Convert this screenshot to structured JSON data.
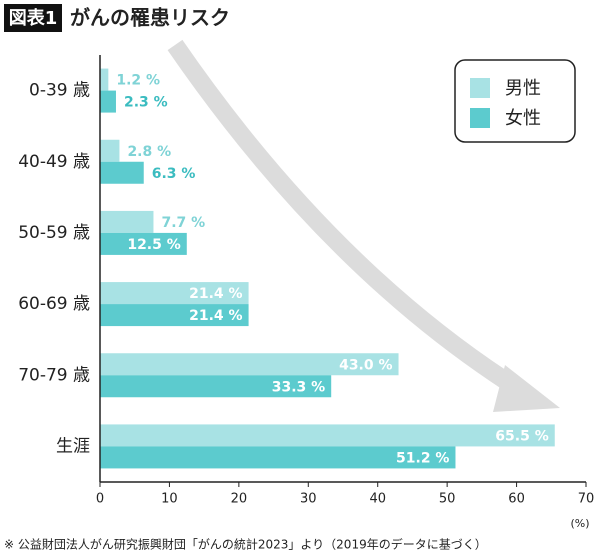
{
  "chart_data": {
    "type": "hbar",
    "title_badge": "図表1",
    "title": "がんの罹患リスク",
    "categories": [
      "0-39 歳",
      "40-49 歳",
      "50-59 歳",
      "60-69 歳",
      "70-79 歳",
      "生涯"
    ],
    "series": [
      {
        "name": "男性",
        "color": "#a8e2e4",
        "values": [
          1.2,
          2.8,
          7.7,
          21.4,
          43.0,
          65.5
        ],
        "value_labels": [
          "1.2 %",
          "2.8 %",
          "7.7 %",
          "21.4 %",
          "43.0 %",
          "65.5 %"
        ]
      },
      {
        "name": "女性",
        "color": "#5ccbce",
        "values": [
          2.3,
          6.3,
          12.5,
          21.4,
          33.3,
          51.2
        ],
        "value_labels": [
          "2.3 %",
          "6.3 %",
          "12.5 %",
          "21.4 %",
          "33.3 %",
          "51.2 %"
        ]
      }
    ],
    "xlim": [
      0,
      70
    ],
    "xticks": [
      0,
      10,
      20,
      30,
      40,
      50,
      60,
      70
    ],
    "xlabel": "(%)",
    "legend": "top-right",
    "footnote": "※ 公益財団法人がん研究振興財団「がんの統計2023」より（2019年のデータに基づく）"
  }
}
